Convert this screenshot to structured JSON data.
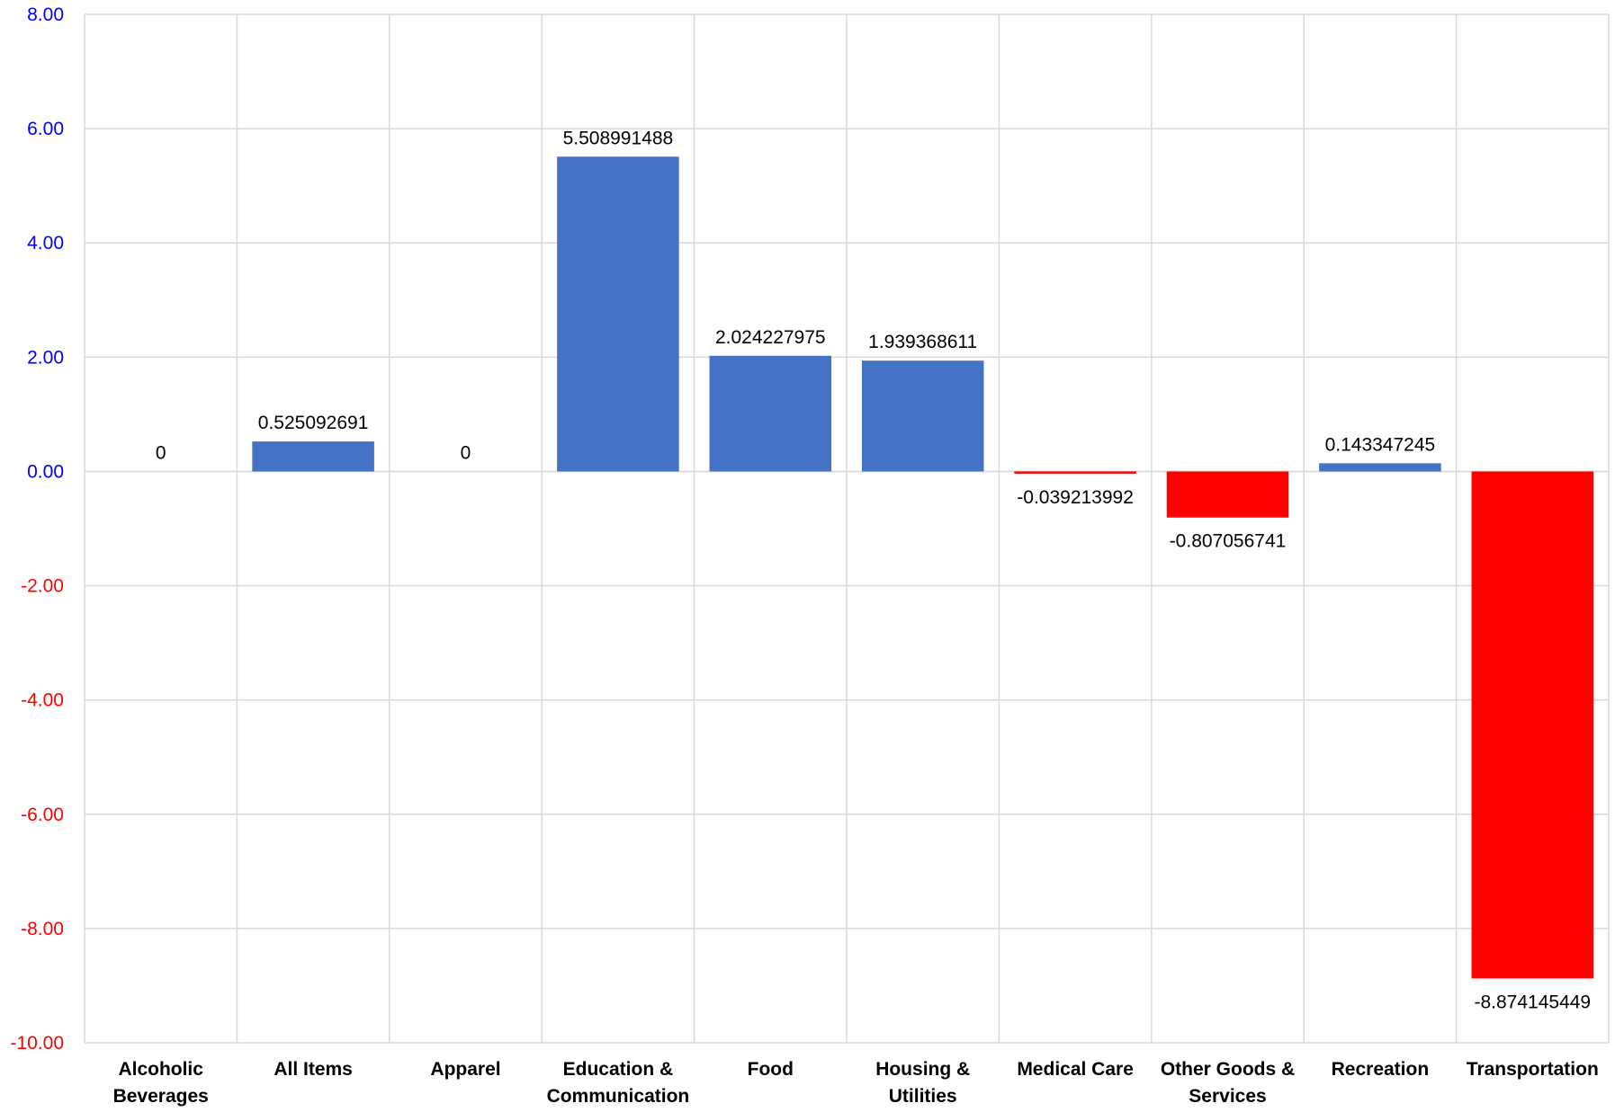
{
  "chart_data": {
    "type": "bar",
    "title": "",
    "xlabel": "",
    "ylabel": "",
    "categories": [
      "Alcoholic Beverages",
      "All Items",
      "Apparel",
      "Education & Communication",
      "Food",
      "Housing & Utilities",
      "Medical Care",
      "Other Goods & Services",
      "Recreation",
      "Transportation"
    ],
    "category_label_lines": [
      [
        "Alcoholic",
        "Beverages"
      ],
      [
        "All Items"
      ],
      [
        "Apparel"
      ],
      [
        "Education &",
        "Communication"
      ],
      [
        "Food"
      ],
      [
        "Housing &",
        "Utilities"
      ],
      [
        "Medical Care"
      ],
      [
        "Other Goods &",
        "Services"
      ],
      [
        "Recreation"
      ],
      [
        "Transportation"
      ]
    ],
    "values": [
      0,
      0.525092691,
      0,
      5.508991488,
      2.024227975,
      1.939368611,
      -0.039213992,
      -0.807056741,
      0.143347245,
      -8.874145449
    ],
    "data_labels": [
      "0",
      "0.525092691",
      "0",
      "5.508991488",
      "2.024227975",
      "1.939368611",
      "-0.039213992",
      "-0.807056741",
      "0.143347245",
      "-8.874145449"
    ],
    "ylim": [
      -10,
      8
    ],
    "yticks": [
      8,
      6,
      4,
      2,
      0,
      -2,
      -4,
      -6,
      -8,
      -10
    ],
    "ytick_labels": [
      "8.00",
      "6.00",
      "4.00",
      "2.00",
      "0.00",
      "-2.00",
      "-4.00",
      "-6.00",
      "-8.00",
      "-10.00"
    ],
    "grid": true,
    "legend": "none",
    "colors": {
      "positive_bar": "#4472C4",
      "negative_bar": "#FF0000",
      "positive_tick": "#0000FF",
      "negative_tick": "#FF0000",
      "gridline": "#D9D9D9"
    }
  }
}
